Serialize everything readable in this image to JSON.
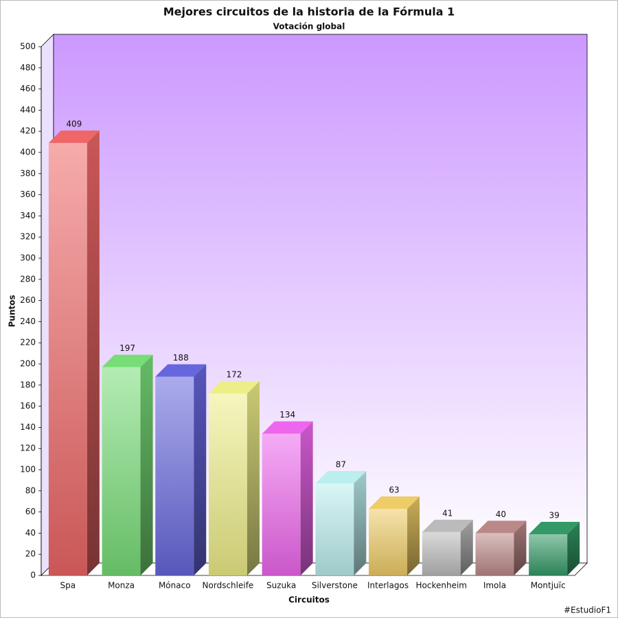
{
  "chart_data": {
    "type": "bar",
    "title": "Mejores circuitos de la historia de la Fórmula 1",
    "subtitle": "Votación global",
    "x_label": "Circuitos",
    "y_label": "Puntos",
    "categories": [
      "Spa",
      "Monza",
      "Mónaco",
      "Nordschleife",
      "Suzuka",
      "Silverstone",
      "Interlagos",
      "Hockenheim",
      "Imola",
      "Montjuïc"
    ],
    "values": [
      409,
      197,
      188,
      172,
      134,
      87,
      63,
      41,
      40,
      39
    ],
    "colors": [
      "#ee6666",
      "#77dd77",
      "#6666dd",
      "#eeee88",
      "#ee66ee",
      "#bbeeee",
      "#eecc66",
      "#bbbbbb",
      "#bb8888",
      "#339966"
    ],
    "ylim": [
      0,
      500
    ],
    "yticks": [
      0,
      20,
      40,
      60,
      80,
      100,
      120,
      140,
      160,
      180,
      200,
      220,
      240,
      260,
      280,
      300,
      320,
      340,
      360,
      380,
      400,
      420,
      440,
      460,
      480,
      500
    ],
    "grid": false,
    "show_value_labels": true
  },
  "footer": "#EstudioF1"
}
